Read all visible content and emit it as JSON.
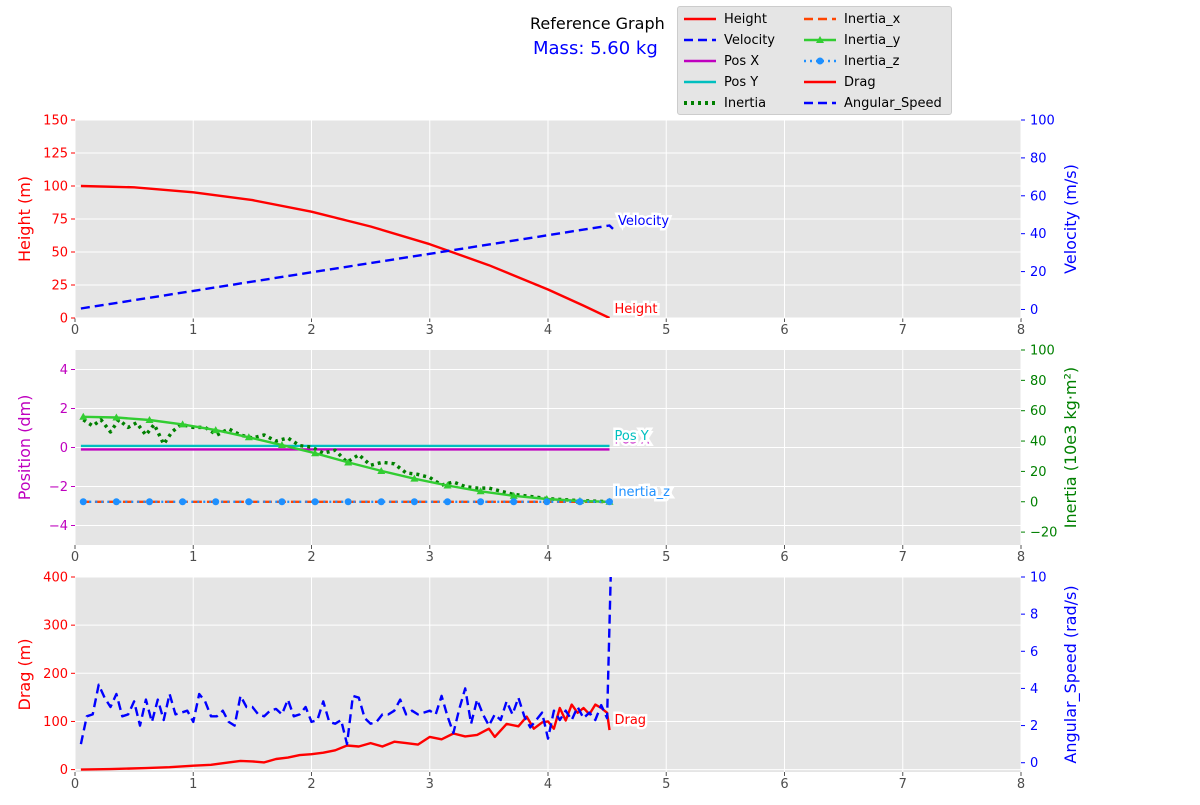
{
  "header": {
    "title": "Reference Graph",
    "mass_label": "Mass: 5.60 kg",
    "mass_color": "#0000ff"
  },
  "legend": {
    "placement": "top-right",
    "entries": [
      {
        "label": "Height",
        "color": "#ff0000",
        "style": "solid"
      },
      {
        "label": "Velocity",
        "color": "#0000ff",
        "style": "dashed"
      },
      {
        "label": "Pos X",
        "color": "#bf00bf",
        "style": "solid"
      },
      {
        "label": "Pos Y",
        "color": "#00bfbf",
        "style": "solid"
      },
      {
        "label": "Inertia",
        "color": "#008000",
        "style": "dotted"
      },
      {
        "label": "Inertia_x",
        "color": "#ff4500",
        "style": "dashed"
      },
      {
        "label": "Inertia_y",
        "color": "#32cd32",
        "style": "solid-triangle"
      },
      {
        "label": "Inertia_z",
        "color": "#1e90ff",
        "style": "dotted-circle"
      },
      {
        "label": "Drag",
        "color": "#ff0000",
        "style": "solid"
      },
      {
        "label": "Angular_Speed",
        "color": "#0000ff",
        "style": "dashed"
      }
    ]
  },
  "chart_data": [
    {
      "type": "line",
      "xlim": [
        0,
        8
      ],
      "x_ticks": [
        "0",
        "1",
        "2",
        "3",
        "4",
        "5",
        "6",
        "7",
        "8"
      ],
      "grid": true,
      "left_axis": {
        "label": "Height (m)",
        "color": "#ff0000",
        "ylim": [
          0,
          150
        ],
        "ticks": [
          "0",
          "25",
          "50",
          "75",
          "100",
          "125",
          "150"
        ]
      },
      "right_axis": {
        "label": "Velocity (m/s)",
        "color": "#0000ff",
        "ylim": [
          -4.5,
          100
        ],
        "ticks": [
          "0",
          "20",
          "40",
          "60",
          "80",
          "100"
        ]
      },
      "series": [
        {
          "name": "Height",
          "axis": "left",
          "color": "#ff0000",
          "style": "solid",
          "x": [
            0.05,
            0.5,
            1.0,
            1.5,
            2.0,
            2.5,
            3.0,
            3.5,
            4.0,
            4.3,
            4.52
          ],
          "values": [
            100,
            99.0,
            95.2,
            89.3,
            80.5,
            69.3,
            55.9,
            40.0,
            21.6,
            9.4,
            0
          ],
          "end_label": "Height"
        },
        {
          "name": "Velocity",
          "axis": "right",
          "color": "#0000ff",
          "style": "dashed",
          "x": [
            0.05,
            1.0,
            2.0,
            3.0,
            4.0,
            4.52,
            4.55
          ],
          "values": [
            0.5,
            9.8,
            19.6,
            29.4,
            39.2,
            44.3,
            42.5
          ],
          "end_label": "Velocity"
        }
      ]
    },
    {
      "type": "line",
      "xlim": [
        0,
        8
      ],
      "x_ticks": [
        "0",
        "1",
        "2",
        "3",
        "4",
        "5",
        "6",
        "7",
        "8"
      ],
      "grid": true,
      "left_axis": {
        "label": "Position (dm)",
        "color": "#bf00bf",
        "ylim": [
          -5,
          5
        ],
        "ticks": [
          "−4",
          "−2",
          "0",
          "2",
          "4"
        ]
      },
      "right_axis": {
        "label": "Inertia (10e3 kg·m²)",
        "color": "#008000",
        "ylim": [
          -28.5,
          100
        ],
        "ticks": [
          "−20",
          "0",
          "20",
          "40",
          "60",
          "80",
          "100"
        ]
      },
      "series": [
        {
          "name": "Pos X",
          "axis": "left",
          "color": "#bf00bf",
          "style": "solid",
          "x": [
            0.05,
            4.52
          ],
          "values": [
            -0.1,
            -0.1
          ],
          "end_label": "Pos X"
        },
        {
          "name": "Pos Y",
          "axis": "left",
          "color": "#00bfbf",
          "style": "solid",
          "x": [
            0.05,
            4.52
          ],
          "values": [
            0.08,
            0.08
          ],
          "end_label": "Pos Y"
        },
        {
          "name": "Inertia",
          "axis": "right",
          "color": "#008000",
          "style": "dotted",
          "x": [
            0.07,
            0.15,
            0.22,
            0.3,
            0.37,
            0.45,
            0.52,
            0.6,
            0.67,
            0.75,
            0.82,
            0.9,
            1.0,
            1.1,
            1.2,
            1.3,
            1.4,
            1.5,
            1.6,
            1.7,
            1.8,
            1.9,
            2.0,
            2.1,
            2.2,
            2.3,
            2.4,
            2.5,
            2.6,
            2.7,
            2.8,
            2.9,
            3.0,
            3.1,
            3.2,
            3.3,
            3.4,
            3.5,
            3.6,
            3.7,
            3.8,
            3.9,
            4.0,
            4.2,
            4.52
          ],
          "values": [
            54,
            50,
            54,
            46,
            54,
            49,
            52,
            44,
            51,
            38,
            46,
            51,
            49,
            49,
            44,
            48,
            44,
            42,
            44,
            40,
            42,
            37,
            36,
            32,
            34,
            26,
            31,
            24,
            26,
            25,
            19,
            18,
            16,
            11,
            13,
            10,
            9,
            9,
            7,
            5,
            4,
            3,
            2,
            1,
            0
          ],
          "end_label": "Inertia"
        },
        {
          "name": "Inertia_x",
          "axis": "right",
          "color": "#ff4500",
          "style": "dashed",
          "x": [
            0.05,
            4.52
          ],
          "values": [
            0,
            0
          ],
          "end_label": "Inertia_x"
        },
        {
          "name": "Inertia_y",
          "axis": "right",
          "color": "#32cd32",
          "style": "solid-triangle",
          "x": [
            0.07,
            0.35,
            0.63,
            0.91,
            1.19,
            1.47,
            1.75,
            2.03,
            2.31,
            2.59,
            2.87,
            3.15,
            3.43,
            3.71,
            3.99,
            4.27,
            4.52
          ],
          "values": [
            56,
            55.5,
            53.9,
            51.0,
            47.2,
            42.5,
            37.3,
            32.0,
            25.9,
            20.3,
            15.2,
            10.7,
            6.9,
            3.9,
            1.8,
            0.5,
            0
          ],
          "end_label": "Inertia_y"
        },
        {
          "name": "Inertia_z",
          "axis": "right",
          "color": "#1e90ff",
          "style": "dotted-circle",
          "x": [
            0.07,
            0.35,
            0.63,
            0.91,
            1.19,
            1.47,
            1.75,
            2.03,
            2.31,
            2.59,
            2.87,
            3.15,
            3.43,
            3.71,
            3.99,
            4.27,
            4.52
          ],
          "values": [
            0,
            0,
            0,
            0,
            0,
            0,
            0,
            0,
            0,
            0,
            0,
            0,
            0,
            0,
            0,
            0,
            0
          ],
          "end_label": "Inertia_z"
        }
      ]
    },
    {
      "type": "line",
      "xlim": [
        0,
        8
      ],
      "x_ticks": [
        "0",
        "1",
        "2",
        "3",
        "4",
        "5",
        "6",
        "7",
        "8"
      ],
      "grid": true,
      "left_axis": {
        "label": "Drag (m)",
        "color": "#ff0000",
        "ylim": [
          -5,
          400
        ],
        "ticks": [
          "0",
          "100",
          "200",
          "300",
          "400"
        ]
      },
      "right_axis": {
        "label": "Angular_Speed (rad/s)",
        "color": "#0000ff",
        "ylim": [
          -0.5,
          10
        ],
        "ticks": [
          "0",
          "2",
          "4",
          "6",
          "8",
          "10"
        ]
      },
      "series": [
        {
          "name": "Drag",
          "axis": "left",
          "color": "#ff0000",
          "style": "solid",
          "x": [
            0.05,
            0.3,
            0.6,
            0.8,
            1.0,
            1.15,
            1.3,
            1.4,
            1.5,
            1.6,
            1.7,
            1.8,
            1.9,
            2.0,
            2.1,
            2.2,
            2.3,
            2.4,
            2.5,
            2.6,
            2.7,
            2.8,
            2.9,
            3.0,
            3.1,
            3.2,
            3.3,
            3.4,
            3.5,
            3.55,
            3.65,
            3.75,
            3.82,
            3.88,
            3.95,
            4.0,
            4.05,
            4.1,
            4.15,
            4.2,
            4.25,
            4.3,
            4.35,
            4.4,
            4.45,
            4.5,
            4.52
          ],
          "values": [
            0,
            1,
            3,
            5,
            8,
            10,
            15,
            18,
            17,
            15,
            22,
            25,
            30,
            32,
            35,
            40,
            50,
            48,
            55,
            48,
            58,
            55,
            52,
            68,
            63,
            75,
            69,
            72,
            85,
            68,
            95,
            90,
            110,
            85,
            98,
            100,
            85,
            128,
            102,
            135,
            118,
            128,
            115,
            135,
            128,
            118,
            82
          ],
          "end_label": "Drag"
        },
        {
          "name": "Angular_Speed",
          "axis": "right",
          "color": "#0000ff",
          "style": "dashed",
          "x": [
            0.05,
            0.1,
            0.15,
            0.2,
            0.25,
            0.3,
            0.35,
            0.4,
            0.45,
            0.5,
            0.55,
            0.6,
            0.65,
            0.7,
            0.75,
            0.8,
            0.85,
            0.9,
            0.95,
            1.0,
            1.05,
            1.1,
            1.15,
            1.2,
            1.25,
            1.3,
            1.35,
            1.4,
            1.45,
            1.5,
            1.55,
            1.6,
            1.65,
            1.7,
            1.75,
            1.8,
            1.85,
            1.9,
            1.95,
            2.0,
            2.05,
            2.1,
            2.15,
            2.2,
            2.25,
            2.3,
            2.35,
            2.4,
            2.45,
            2.5,
            2.55,
            2.6,
            2.65,
            2.7,
            2.75,
            2.8,
            2.85,
            2.9,
            2.95,
            3.0,
            3.05,
            3.1,
            3.15,
            3.2,
            3.25,
            3.3,
            3.35,
            3.4,
            3.45,
            3.5,
            3.55,
            3.6,
            3.65,
            3.7,
            3.75,
            3.8,
            3.85,
            3.9,
            3.95,
            4.0,
            4.05,
            4.1,
            4.15,
            4.2,
            4.25,
            4.3,
            4.35,
            4.4,
            4.45,
            4.5,
            4.53,
            4.55
          ],
          "values": [
            1.0,
            2.5,
            2.6,
            4.2,
            3.5,
            3.0,
            3.7,
            2.5,
            2.6,
            3.3,
            2.0,
            3.4,
            2.2,
            3.4,
            2.3,
            3.7,
            2.6,
            2.7,
            2.8,
            2.2,
            3.7,
            3.3,
            2.5,
            2.5,
            2.8,
            2.2,
            2.0,
            3.6,
            3.0,
            3.0,
            2.6,
            2.5,
            2.8,
            2.9,
            2.6,
            3.4,
            2.5,
            2.6,
            3.0,
            2.2,
            2.3,
            3.3,
            2.2,
            2.1,
            2.3,
            1.0,
            3.6,
            3.5,
            2.4,
            2.1,
            2.2,
            2.6,
            2.6,
            2.8,
            3.4,
            2.6,
            2.8,
            2.6,
            2.7,
            2.8,
            2.6,
            3.6,
            2.5,
            1.6,
            2.9,
            4.0,
            2.1,
            3.4,
            2.6,
            2.0,
            2.6,
            2.3,
            3.3,
            2.6,
            3.5,
            2.5,
            1.9,
            2.3,
            2.7,
            1.3,
            2.8,
            2.3,
            2.8,
            2.3,
            3.0,
            2.4,
            2.7,
            2.3,
            3.1,
            2.4,
            10.0,
            10.5
          ],
          "end_label": ""
        }
      ]
    }
  ]
}
